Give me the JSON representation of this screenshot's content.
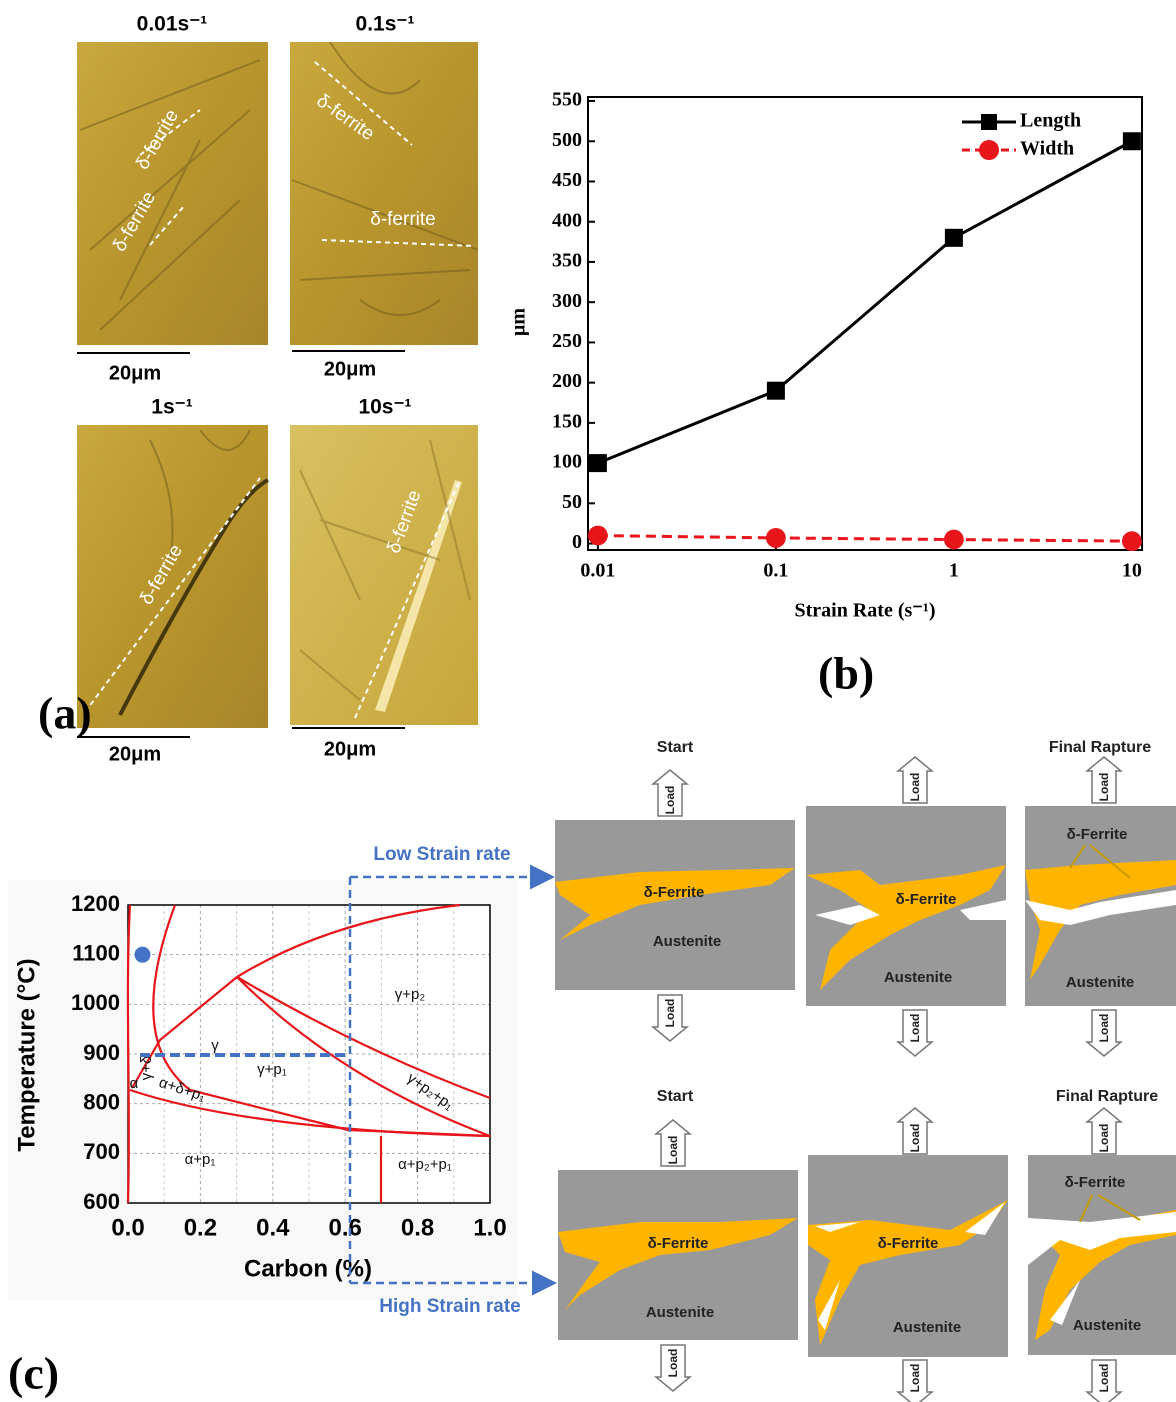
{
  "chart_data": [
    {
      "type": "line",
      "xlabel": "Strain Rate (s⁻¹)",
      "ylabel": "μm",
      "x": [
        0.01,
        0.1,
        1,
        10
      ],
      "xscale": "log",
      "xlim": [
        0.0088,
        11.4
      ],
      "xticks": [
        0.01,
        0.1,
        1,
        10
      ],
      "ylim": [
        -8,
        555
      ],
      "yticks": [
        0,
        50,
        100,
        150,
        200,
        250,
        300,
        350,
        400,
        450,
        500,
        550
      ],
      "legend": "upper right",
      "series": [
        {
          "name": "Length",
          "color": "#000000",
          "marker": "square",
          "linestyle": "solid",
          "values": [
            100,
            190,
            380,
            500
          ]
        },
        {
          "name": "Width",
          "color": "#e8151b",
          "marker": "circle",
          "linestyle": "dashed",
          "values": [
            10,
            7,
            5,
            3
          ]
        }
      ]
    },
    {
      "type": "phase-diagram",
      "xlabel": "Carbon (%)",
      "ylabel": "Temperature (°C)",
      "xlim": [
        0,
        1
      ],
      "ylim": [
        600,
        1200
      ],
      "xticks": [
        {
          "value": 0,
          "label": "0.0"
        },
        {
          "value": 0.2,
          "label": "0.2"
        },
        {
          "value": 0.4,
          "label": "0.4"
        },
        {
          "value": 0.6,
          "label": "0.6"
        },
        {
          "value": 0.8,
          "label": "0.8"
        },
        {
          "value": 1,
          "label": "1.0"
        }
      ],
      "yticks": [
        600,
        700,
        800,
        900,
        1000,
        1100,
        1200
      ],
      "grid": true,
      "point": {
        "x": 0.04,
        "y": 1100,
        "color": "#4472c4"
      },
      "regions": [
        "γ",
        "γ+δ",
        "γ+p₂",
        "γ+p₁",
        "α+δ+p₁",
        "γ+p₂+p₁",
        "α",
        "α+p₁",
        "α+p₂+p₁"
      ]
    }
  ],
  "figure": {
    "panel_labels": [
      "(a)",
      "(b)",
      "(c)"
    ],
    "micrographs": [
      {
        "title": "0.01s⁻¹",
        "scale": "20μm",
        "labels": [
          "δ-ferrite",
          "δ-ferrite"
        ]
      },
      {
        "title": "0.1s⁻¹",
        "scale": "20μm",
        "labels": [
          "δ-ferrite",
          "δ-ferrite"
        ]
      },
      {
        "title": "1s⁻¹",
        "scale": "20μm",
        "labels": [
          "δ-ferrite"
        ]
      },
      {
        "title": "10s⁻¹",
        "scale": "20μm",
        "labels": [
          "δ-ferrite"
        ]
      }
    ],
    "schematic": {
      "low": "Low Strain rate",
      "high": "High Strain rate",
      "rows": [
        {
          "stages": [
            {
              "title": "Start",
              "ferrite": "δ-Ferrite",
              "austenite": "Austenite",
              "loads": [
                "Load",
                "Load"
              ]
            },
            {
              "ferrite": "δ-Ferrite",
              "austenite": "Austenite",
              "loads": [
                "Load",
                "Load"
              ]
            },
            {
              "title": "Final Rapture",
              "ferrite": "δ-Ferrite",
              "austenite": "Austenite",
              "loads": [
                "Load",
                "Load"
              ]
            }
          ]
        },
        {
          "stages": [
            {
              "title": "Start",
              "ferrite": "δ-Ferrite",
              "austenite": "Austenite",
              "loads": [
                "Load",
                "Load"
              ]
            },
            {
              "ferrite": "δ-Ferrite",
              "austenite": "Austenite",
              "loads": [
                "Load",
                "Load"
              ]
            },
            {
              "title": "Final Rapture",
              "ferrite": "δ-Ferrite",
              "austenite": "Austenite",
              "loads": [
                "Load",
                "Load"
              ]
            }
          ]
        }
      ]
    }
  }
}
